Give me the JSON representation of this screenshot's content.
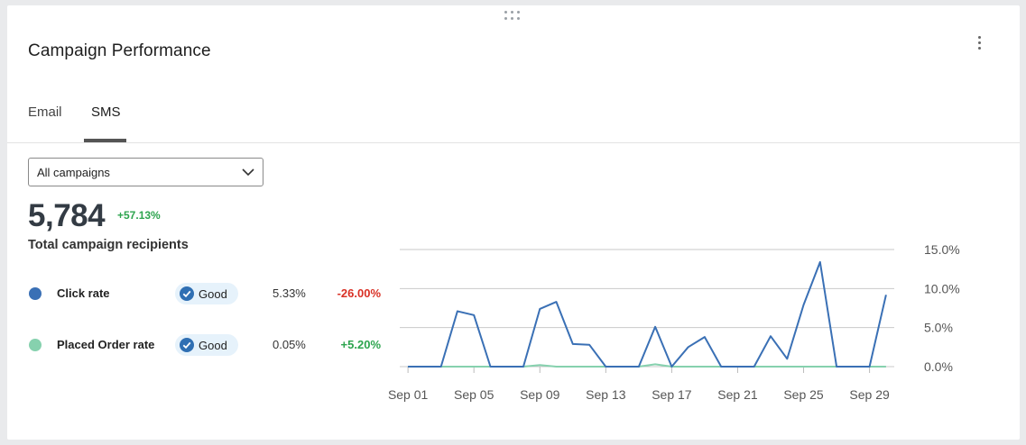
{
  "widget": {
    "title": "Campaign Performance",
    "tabs": [
      {
        "label": "Email",
        "active": false
      },
      {
        "label": "SMS",
        "active": true
      }
    ],
    "campaign_select": {
      "value": "All campaigns"
    },
    "total": {
      "value": "5,784",
      "delta": "+57.13%",
      "label": "Total campaign recipients"
    },
    "metrics": [
      {
        "name": "Click rate",
        "badge": "Good",
        "value": "5.33%",
        "delta": "-26.00%",
        "dot_color": "#3a70b5",
        "delta_color": "#d93025"
      },
      {
        "name": "Placed Order rate",
        "badge": "Good",
        "value": "0.05%",
        "delta": "+5.20%",
        "dot_color": "#86d1ae",
        "delta_color": "#2da44e"
      }
    ],
    "icons": {
      "drag": "drag-handle-icon",
      "more": "more-vertical-icon",
      "chevron": "chevron-down-icon",
      "badge": "check-circle-icon"
    }
  },
  "chart_data": {
    "type": "line",
    "x": [
      1,
      2,
      3,
      4,
      5,
      6,
      7,
      8,
      9,
      10,
      11,
      12,
      13,
      14,
      15,
      16,
      17,
      18,
      19,
      20,
      21,
      22,
      23,
      24,
      25,
      26,
      27,
      28,
      29,
      30
    ],
    "tick_labels": [
      "Sep 01",
      "Sep 05",
      "Sep 09",
      "Sep 13",
      "Sep 17",
      "Sep 21",
      "Sep 25",
      "Sep 29"
    ],
    "tick_x": [
      1,
      5,
      9,
      13,
      17,
      21,
      25,
      29
    ],
    "y_ticks": [
      "0.0%",
      "5.0%",
      "10.0%",
      "15.0%"
    ],
    "y_tick_values": [
      0,
      5,
      10,
      15
    ],
    "ylim": [
      0,
      15
    ],
    "xlim": [
      0.5,
      30.5
    ],
    "series": [
      {
        "name": "Click rate",
        "color": "#3a70b5",
        "values": [
          0,
          0,
          0,
          7.1,
          6.6,
          0,
          0,
          0,
          7.4,
          8.3,
          2.9,
          2.8,
          0,
          0,
          0,
          5.1,
          0,
          2.5,
          3.8,
          0,
          0,
          0,
          3.9,
          1.0,
          7.9,
          13.4,
          0,
          0,
          0,
          9.2
        ]
      },
      {
        "name": "Placed Order rate",
        "color": "#86d1ae",
        "values": [
          0,
          0,
          0,
          0,
          0,
          0,
          0,
          0,
          0.2,
          0,
          0,
          0,
          0,
          0,
          0,
          0.3,
          0,
          0,
          0,
          0,
          0,
          0,
          0,
          0,
          0,
          0,
          0,
          0,
          0,
          0
        ]
      }
    ]
  }
}
